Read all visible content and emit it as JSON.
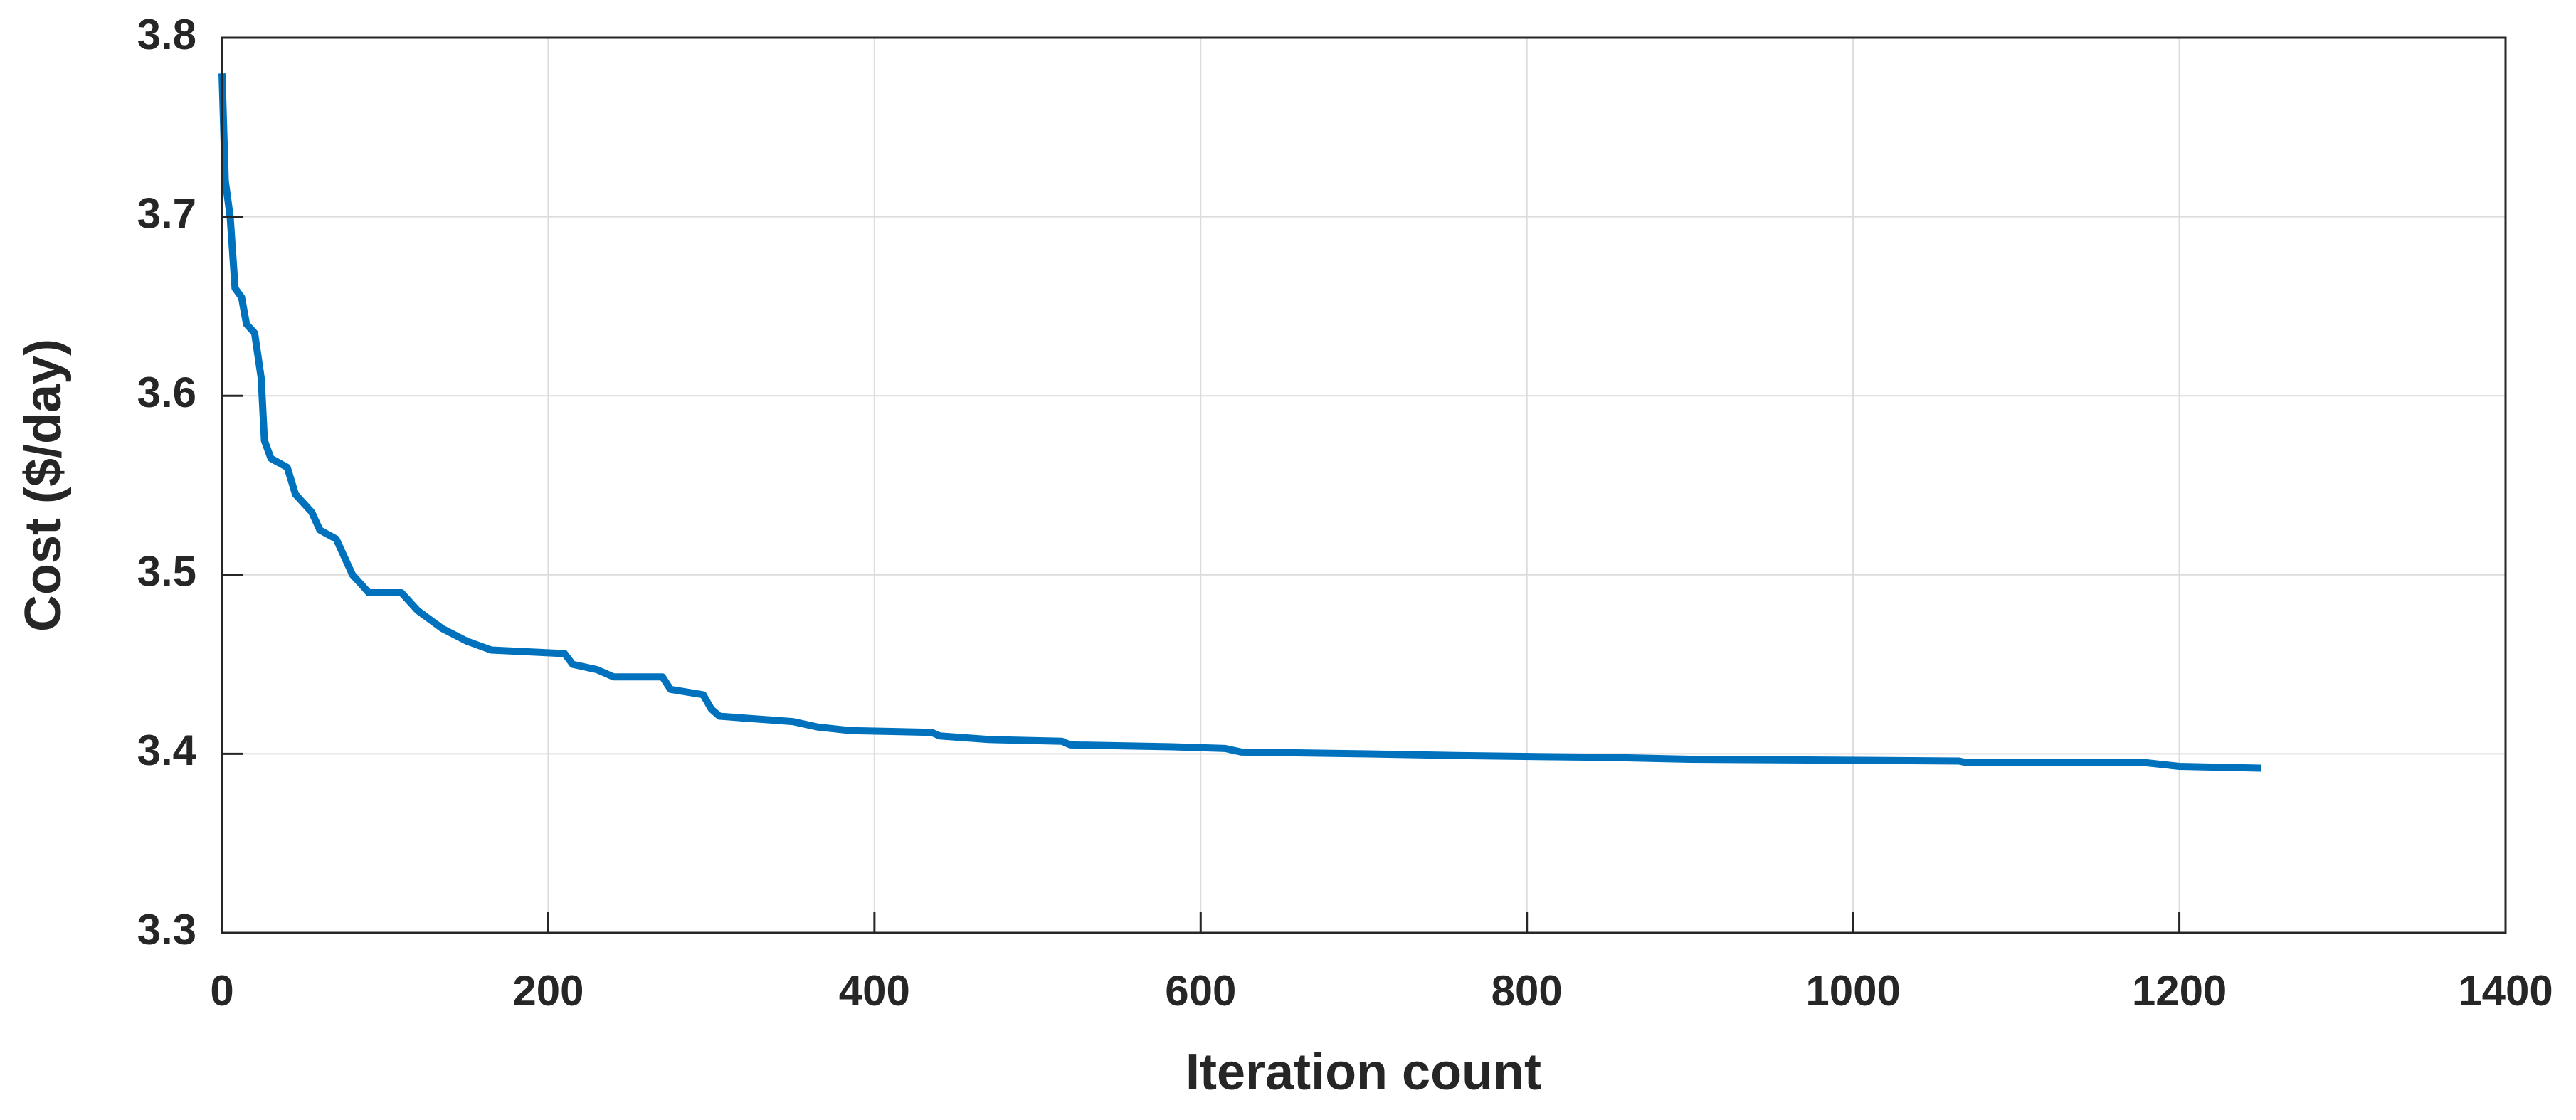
{
  "chart_data": {
    "type": "line",
    "x_label": "Iteration count",
    "y_label": "Cost ($/day)",
    "xlim": [
      0,
      1400
    ],
    "xticks": [
      0,
      200,
      400,
      600,
      800,
      1000,
      1200,
      1400
    ],
    "ylim": [
      3.3,
      3.8
    ],
    "yticks": [
      3.3,
      3.4,
      3.5,
      3.6,
      3.7,
      3.8
    ],
    "grid": true,
    "x": [
      0,
      2,
      5,
      8,
      12,
      15,
      20,
      24,
      26,
      30,
      40,
      45,
      55,
      60,
      70,
      75,
      80,
      90,
      110,
      120,
      135,
      150,
      165,
      210,
      215,
      230,
      240,
      270,
      275,
      295,
      300,
      305,
      320,
      350,
      365,
      385,
      435,
      440,
      470,
      515,
      520,
      580,
      615,
      625,
      700,
      760,
      850,
      900,
      1065,
      1070,
      1180,
      1200,
      1250
    ],
    "series": [
      {
        "color": "#0072bd",
        "values": [
          3.78,
          3.72,
          3.7,
          3.66,
          3.655,
          3.64,
          3.635,
          3.61,
          3.575,
          3.565,
          3.56,
          3.545,
          3.535,
          3.525,
          3.52,
          3.51,
          3.5,
          3.49,
          3.49,
          3.48,
          3.47,
          3.463,
          3.458,
          3.456,
          3.45,
          3.447,
          3.443,
          3.443,
          3.436,
          3.433,
          3.425,
          3.421,
          3.42,
          3.418,
          3.415,
          3.413,
          3.412,
          3.41,
          3.408,
          3.407,
          3.405,
          3.404,
          3.403,
          3.401,
          3.4,
          3.399,
          3.398,
          3.397,
          3.396,
          3.395,
          3.395,
          3.393,
          3.392
        ]
      }
    ]
  }
}
